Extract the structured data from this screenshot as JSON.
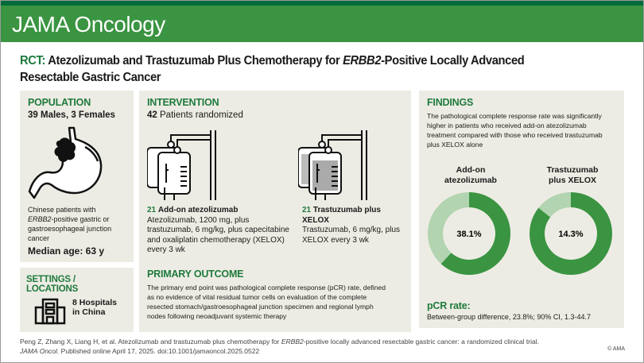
{
  "header": {
    "journal": "JAMA Oncology",
    "brand_color": "#3a9441"
  },
  "title": {
    "prefix": "RCT:",
    "part1": "Atezolizumab and Trastuzumab Plus Chemotherapy for",
    "gene": "ERBB2",
    "part2": "-Positive Locally Advanced Resectable Gastric Cancer"
  },
  "population": {
    "heading": "POPULATION",
    "sex": "39 Males, 3 Females",
    "icon": "stomach-tumor-icon",
    "desc1": "Chinese patients with",
    "desc_gene": "ERBB2",
    "desc2": "-positive gastric or gastroesophageal junction cancer",
    "median_age": "Median age: 63 y"
  },
  "settings": {
    "heading": "SETTINGS / LOCATIONS",
    "icon": "hospital-icon",
    "line1": "8 Hospitals",
    "line2": "in China"
  },
  "intervention": {
    "heading": "INTERVENTION",
    "randomized_n": "42",
    "randomized_label": "Patients randomized",
    "arms": [
      {
        "n": "21",
        "name": "Add-on atezolizumab",
        "desc": "Atezolizumab, 1200 mg, plus trastuzumab, 6 mg/kg, plus capecitabine and oxaliplatin chemotherapy (XELOX) every 3 wk",
        "icon": "iv-bag-icon"
      },
      {
        "n": "21",
        "name": "Trastuzumab plus XELOX",
        "desc": "Trastuzumab, 6 mg/kg, plus XELOX every 3 wk",
        "icon": "iv-bag-icon"
      }
    ]
  },
  "primary_outcome": {
    "heading": "PRIMARY OUTCOME",
    "text": "The primary end point was pathological complete response (pCR) rate, defined as no evidence of vital residual tumor cells on evaluation of the complete resected stomach/gastroesophageal junction specimen and regional lymph nodes following neoadjuvant systemic therapy"
  },
  "findings": {
    "heading": "FINDINGS",
    "text": "The pathological complete response rate was significantly higher in patients who received add-on atezolizumab treatment compared with those who received trastuzumab plus XELOX alone",
    "donuts": [
      {
        "label1": "Add-on",
        "label2": "atezolizumab",
        "value": 38.1,
        "value_label": "38.1%"
      },
      {
        "label1": "Trastuzumab",
        "label2": "plus XELOX",
        "value": 14.3,
        "value_label": "14.3%"
      }
    ],
    "colors": {
      "filled": "#3a9441",
      "remaining": "#b2d4b0"
    },
    "pcr_heading": "pCR rate:",
    "pcr_text": "Between-group difference, 23.8%; 90% CI, 1.3-44.7"
  },
  "footer": {
    "citation1": "Peng Z, Zhang X, Liang H, et al. Atezolizumab and trastuzumab plus chemotherapy for",
    "citation_gene": "ERBB2",
    "citation2": "-positive locally advanced resectable gastric cancer: a randomized clinical trial.",
    "journal_abbr": "JAMA Oncol.",
    "published": "Published online April 17, 2025. doi:10.1001/jamaoncol.2025.0522",
    "copyright": "© AMA"
  }
}
